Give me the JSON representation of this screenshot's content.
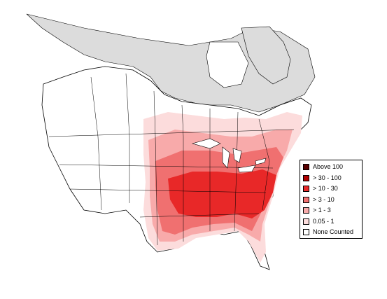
{
  "legend": {
    "items": [
      {
        "label": "Above 100",
        "color": "#5a0000"
      },
      {
        "label": "> 30 - 100",
        "color": "#b00000"
      },
      {
        "label": "> 10 - 30",
        "color": "#e82828"
      },
      {
        "label": "> 3 - 10",
        "color": "#f07070"
      },
      {
        "label": "> 1 - 3",
        "color": "#f8aaaa"
      },
      {
        "label": "0.05 - 1",
        "color": "#fcdcdc"
      },
      {
        "label": "None Counted",
        "color": "#ffffff"
      }
    ]
  },
  "colors": {
    "no_data": "#dcdcdc",
    "border": "#000000"
  }
}
